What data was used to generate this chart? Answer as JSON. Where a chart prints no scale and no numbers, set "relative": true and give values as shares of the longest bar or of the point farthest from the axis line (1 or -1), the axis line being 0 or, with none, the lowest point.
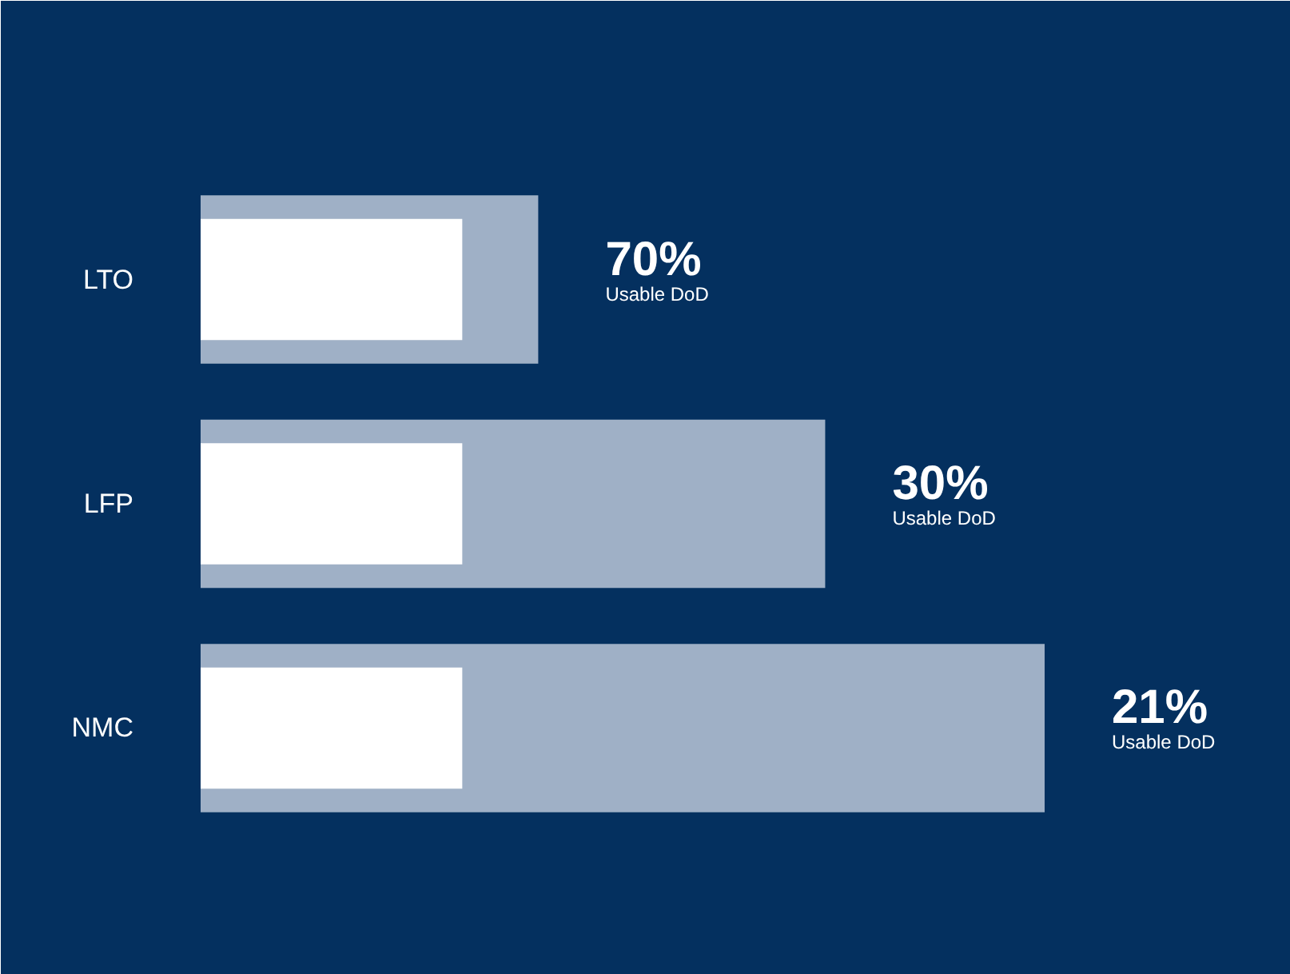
{
  "chart_data": {
    "type": "bar",
    "orientation": "horizontal",
    "relative": true,
    "categories": [
      "LTO",
      "LFP",
      "NMC"
    ],
    "series": [
      {
        "color": "#9fb0c6",
        "values": [
          0.4,
          0.74,
          1
        ]
      },
      {
        "color": "#ffffff",
        "values": [
          0.31,
          0.31,
          0.31
        ]
      }
    ],
    "annotations": [
      {
        "text": "70%",
        "x": 0.4,
        "y": "LTO"
      },
      {
        "text": "30%",
        "x": 0.74,
        "y": "LFP"
      },
      {
        "text": "21%",
        "x": 1,
        "y": "NMC"
      },
      "Usable DoD",
      "Usable DoD",
      "Usable DoD"
    ],
    "grid": false
  }
}
